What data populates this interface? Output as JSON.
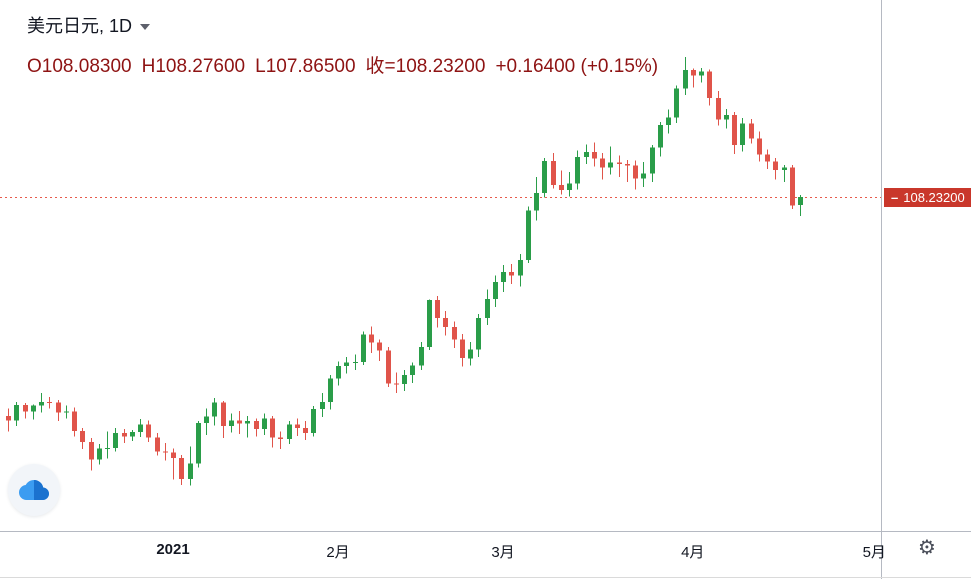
{
  "header": {
    "symbol": "美元日元",
    "separator": ", ",
    "interval": "1D",
    "title_color": "#131722",
    "ohlc_color": "#8e1313",
    "ohlc": {
      "open": "O108.08300",
      "high": "H108.27600",
      "low": "L107.86500",
      "close": "收=108.23200",
      "change": "+0.16400 (+0.15%)"
    }
  },
  "price_scale": {
    "marker": "–",
    "last_price_label": "108.23200",
    "label_bg": "#c9372b",
    "label_text_color": "#ffffff"
  },
  "icons": {
    "settings": "⚙",
    "logo": "cloud-logo",
    "interval_chevron": "chevron-down"
  },
  "chart_data": {
    "type": "candlestick",
    "title": "美元日元 1D 日线图",
    "symbol": "美元日元",
    "interval": "1D",
    "up_color": "#2a9d49",
    "down_color": "#e0544a",
    "price_line_color": "#e8594c",
    "last_price": 108.232,
    "grid": false,
    "price_axis": {
      "top": 112.09,
      "bottom": 101.7
    },
    "x_ticks": [
      {
        "label": "2021",
        "index": 20,
        "bold": true
      },
      {
        "label": "2月",
        "index": 40,
        "bold": false
      },
      {
        "label": "3月",
        "index": 60,
        "bold": false
      },
      {
        "label": "4月",
        "index": 83,
        "bold": false
      },
      {
        "label": "5月",
        "index": 105,
        "bold": false
      }
    ],
    "candles_format": [
      "date",
      "open",
      "high",
      "low",
      "close"
    ],
    "candles": [
      [
        "2020-12-03",
        103.95,
        104.1,
        103.65,
        103.86
      ],
      [
        "2020-12-04",
        103.86,
        104.22,
        103.75,
        104.17
      ],
      [
        "2020-12-07",
        104.17,
        104.2,
        103.9,
        104.04
      ],
      [
        "2020-12-08",
        104.04,
        104.18,
        103.88,
        104.16
      ],
      [
        "2020-12-09",
        104.16,
        104.4,
        104.02,
        104.22
      ],
      [
        "2020-12-10",
        104.22,
        104.32,
        104.1,
        104.21
      ],
      [
        "2020-12-11",
        104.21,
        104.26,
        103.85,
        104.02
      ],
      [
        "2020-12-14",
        104.02,
        104.16,
        103.9,
        104.04
      ],
      [
        "2020-12-15",
        104.04,
        104.12,
        103.55,
        103.66
      ],
      [
        "2020-12-16",
        103.66,
        103.72,
        103.3,
        103.44
      ],
      [
        "2020-12-17",
        103.44,
        103.52,
        102.88,
        103.1
      ],
      [
        "2020-12-18",
        103.1,
        103.4,
        103.0,
        103.31
      ],
      [
        "2020-12-21",
        103.31,
        103.65,
        103.12,
        103.32
      ],
      [
        "2020-12-22",
        103.32,
        103.72,
        103.26,
        103.62
      ],
      [
        "2020-12-23",
        103.62,
        103.7,
        103.42,
        103.55
      ],
      [
        "2020-12-24",
        103.55,
        103.68,
        103.46,
        103.64
      ],
      [
        "2020-12-28",
        103.64,
        103.89,
        103.54,
        103.78
      ],
      [
        "2020-12-29",
        103.78,
        103.86,
        103.44,
        103.53
      ],
      [
        "2020-12-30",
        103.53,
        103.62,
        103.18,
        103.26
      ],
      [
        "2020-12-31",
        103.26,
        103.42,
        103.08,
        103.24
      ],
      [
        "2021-01-04",
        103.24,
        103.31,
        102.71,
        103.13
      ],
      [
        "2021-01-05",
        103.13,
        103.19,
        102.6,
        102.72
      ],
      [
        "2021-01-06",
        102.72,
        103.35,
        102.59,
        103.02
      ],
      [
        "2021-01-07",
        103.02,
        103.85,
        102.94,
        103.81
      ],
      [
        "2021-01-08",
        103.81,
        104.1,
        103.58,
        103.94
      ],
      [
        "2021-01-11",
        103.94,
        104.3,
        103.76,
        104.21
      ],
      [
        "2021-01-12",
        104.21,
        104.24,
        103.52,
        103.75
      ],
      [
        "2021-01-13",
        103.75,
        104.0,
        103.63,
        103.86
      ],
      [
        "2021-01-14",
        103.86,
        104.05,
        103.6,
        103.8
      ],
      [
        "2021-01-15",
        103.8,
        103.95,
        103.53,
        103.85
      ],
      [
        "2021-01-18",
        103.85,
        103.9,
        103.55,
        103.7
      ],
      [
        "2021-01-19",
        103.7,
        104.0,
        103.58,
        103.9
      ],
      [
        "2021-01-20",
        103.9,
        103.95,
        103.33,
        103.53
      ],
      [
        "2021-01-21",
        103.53,
        103.65,
        103.3,
        103.5
      ],
      [
        "2021-01-22",
        103.5,
        103.85,
        103.4,
        103.78
      ],
      [
        "2021-01-25",
        103.78,
        103.9,
        103.56,
        103.72
      ],
      [
        "2021-01-26",
        103.72,
        103.85,
        103.48,
        103.62
      ],
      [
        "2021-01-27",
        103.62,
        104.15,
        103.55,
        104.09
      ],
      [
        "2021-01-28",
        104.09,
        104.4,
        103.93,
        104.22
      ],
      [
        "2021-01-29",
        104.22,
        104.75,
        104.08,
        104.68
      ],
      [
        "2021-02-01",
        104.68,
        105.02,
        104.55,
        104.93
      ],
      [
        "2021-02-02",
        104.93,
        105.1,
        104.78,
        105.0
      ],
      [
        "2021-02-03",
        105.0,
        105.15,
        104.85,
        105.01
      ],
      [
        "2021-02-04",
        105.01,
        105.6,
        104.95,
        105.54
      ],
      [
        "2021-02-05",
        105.54,
        105.7,
        105.18,
        105.39
      ],
      [
        "2021-02-08",
        105.39,
        105.45,
        105.03,
        105.23
      ],
      [
        "2021-02-09",
        105.23,
        105.3,
        104.52,
        104.59
      ],
      [
        "2021-02-10",
        104.59,
        104.8,
        104.4,
        104.58
      ],
      [
        "2021-02-11",
        104.58,
        104.85,
        104.44,
        104.75
      ],
      [
        "2021-02-12",
        104.75,
        105.0,
        104.6,
        104.94
      ],
      [
        "2021-02-15",
        104.94,
        105.4,
        104.85,
        105.3
      ],
      [
        "2021-02-16",
        105.3,
        106.23,
        105.24,
        106.22
      ],
      [
        "2021-02-17",
        106.22,
        106.3,
        105.68,
        105.87
      ],
      [
        "2021-02-18",
        105.87,
        106.0,
        105.53,
        105.69
      ],
      [
        "2021-02-19",
        105.69,
        105.8,
        105.28,
        105.45
      ],
      [
        "2021-02-22",
        105.45,
        105.55,
        104.92,
        105.08
      ],
      [
        "2021-02-23",
        105.08,
        105.4,
        104.94,
        105.25
      ],
      [
        "2021-02-24",
        105.25,
        105.95,
        105.1,
        105.87
      ],
      [
        "2021-02-25",
        105.87,
        106.43,
        105.73,
        106.24
      ],
      [
        "2021-02-26",
        106.24,
        106.7,
        106.08,
        106.57
      ],
      [
        "2021-03-01",
        106.57,
        106.9,
        106.38,
        106.77
      ],
      [
        "2021-03-02",
        106.77,
        106.92,
        106.53,
        106.7
      ],
      [
        "2021-03-03",
        106.7,
        107.12,
        106.48,
        107.0
      ],
      [
        "2021-03-04",
        107.0,
        108.05,
        106.94,
        107.97
      ],
      [
        "2021-03-05",
        107.97,
        108.63,
        107.78,
        108.31
      ],
      [
        "2021-03-08",
        108.31,
        109.0,
        108.23,
        108.94
      ],
      [
        "2021-03-09",
        108.94,
        109.1,
        108.4,
        108.47
      ],
      [
        "2021-03-10",
        108.47,
        108.75,
        108.28,
        108.37
      ],
      [
        "2021-03-11",
        108.37,
        108.72,
        108.25,
        108.5
      ],
      [
        "2021-03-12",
        108.5,
        109.15,
        108.38,
        109.02
      ],
      [
        "2021-03-15",
        109.02,
        109.26,
        108.88,
        109.12
      ],
      [
        "2021-03-16",
        109.12,
        109.3,
        108.83,
        108.99
      ],
      [
        "2021-03-17",
        108.99,
        109.1,
        108.58,
        108.81
      ],
      [
        "2021-03-18",
        108.81,
        109.22,
        108.68,
        108.91
      ],
      [
        "2021-03-19",
        108.91,
        109.05,
        108.63,
        108.88
      ],
      [
        "2021-03-22",
        108.88,
        108.96,
        108.53,
        108.85
      ],
      [
        "2021-03-23",
        108.85,
        108.95,
        108.38,
        108.6
      ],
      [
        "2021-03-24",
        108.6,
        108.92,
        108.43,
        108.7
      ],
      [
        "2021-03-25",
        108.7,
        109.25,
        108.53,
        109.2
      ],
      [
        "2021-03-26",
        109.2,
        109.7,
        109.03,
        109.64
      ],
      [
        "2021-03-29",
        109.64,
        109.95,
        109.48,
        109.79
      ],
      [
        "2021-03-30",
        109.79,
        110.42,
        109.68,
        110.36
      ],
      [
        "2021-03-31",
        110.36,
        110.97,
        110.23,
        110.72
      ],
      [
        "2021-04-01",
        110.72,
        110.75,
        110.38,
        110.61
      ],
      [
        "2021-04-02",
        110.61,
        110.76,
        110.48,
        110.69
      ],
      [
        "2021-04-05",
        110.69,
        110.73,
        110.03,
        110.17
      ],
      [
        "2021-04-06",
        110.17,
        110.31,
        109.63,
        109.75
      ],
      [
        "2021-04-07",
        109.75,
        109.96,
        109.58,
        109.84
      ],
      [
        "2021-04-08",
        109.84,
        109.9,
        109.08,
        109.25
      ],
      [
        "2021-04-09",
        109.25,
        109.78,
        109.13,
        109.67
      ],
      [
        "2021-04-12",
        109.67,
        109.76,
        109.28,
        109.38
      ],
      [
        "2021-04-13",
        109.38,
        109.52,
        108.93,
        109.07
      ],
      [
        "2021-04-14",
        109.07,
        109.16,
        108.78,
        108.93
      ],
      [
        "2021-04-15",
        108.93,
        109.0,
        108.58,
        108.76
      ],
      [
        "2021-04-16",
        108.76,
        108.86,
        108.53,
        108.81
      ],
      [
        "2021-04-19",
        108.81,
        108.86,
        108.0,
        108.07
      ],
      [
        "2021-04-20",
        108.083,
        108.276,
        107.865,
        108.232
      ]
    ]
  }
}
